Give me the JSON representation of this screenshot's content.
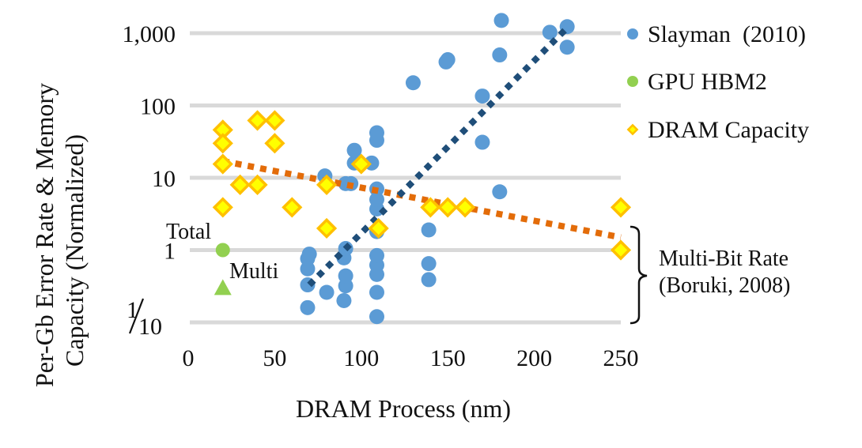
{
  "chart_data": {
    "type": "scatter",
    "title": "",
    "xlabel": "DRAM Process (nm)",
    "ylabel_line1": "Per-Gb Error Rate & Memory",
    "ylabel_line2": "Capacity (Normalized)",
    "xlim": [
      0,
      250
    ],
    "ylim": [
      0.1,
      1000
    ],
    "yscale": "log",
    "grid": "horizontal",
    "legend_position": "right",
    "x_ticks": [
      "0",
      "50",
      "100",
      "150",
      "200",
      "250"
    ],
    "x_tick_values": [
      0,
      50,
      100,
      150,
      200,
      250
    ],
    "y_ticks": [
      "1,000",
      "100",
      "10",
      "1"
    ],
    "y_tick_values": [
      1000,
      100,
      10,
      1
    ],
    "y_tick_fraction": {
      "value": 0.1,
      "numerator": "1",
      "denominator": "10"
    },
    "series": [
      {
        "name": "Slayman  (2010)",
        "marker": "circle",
        "color": "#5b9bd5",
        "points": [
          [
            69,
            0.16
          ],
          [
            69,
            0.33
          ],
          [
            69,
            0.55
          ],
          [
            69,
            0.76
          ],
          [
            70,
            0.88
          ],
          [
            79,
            10.6
          ],
          [
            80,
            0.26
          ],
          [
            90,
            0.2
          ],
          [
            91,
            0.32
          ],
          [
            91,
            0.44
          ],
          [
            90,
            0.78
          ],
          [
            91,
            1.05
          ],
          [
            91,
            8.3
          ],
          [
            94,
            8.3
          ],
          [
            96,
            16
          ],
          [
            96,
            24
          ],
          [
            106,
            16
          ],
          [
            109,
            0.12
          ],
          [
            109,
            0.26
          ],
          [
            109,
            0.46
          ],
          [
            109,
            0.62
          ],
          [
            109,
            0.84
          ],
          [
            109,
            1.8
          ],
          [
            109,
            3.7
          ],
          [
            109,
            5
          ],
          [
            109,
            7
          ],
          [
            109,
            33
          ],
          [
            109,
            42
          ],
          [
            130,
            206
          ],
          [
            139,
            0.39
          ],
          [
            139,
            0.65
          ],
          [
            139,
            1.9
          ],
          [
            149,
            400
          ],
          [
            150,
            430
          ],
          [
            170,
            31
          ],
          [
            170,
            135
          ],
          [
            180,
            6.4
          ],
          [
            180,
            500
          ],
          [
            181,
            1500
          ],
          [
            209,
            1030
          ],
          [
            219,
            1230
          ],
          [
            219,
            640
          ]
        ],
        "trendline": {
          "type": "exponential",
          "color": "#1f4e79",
          "from": [
            70,
            0.33
          ],
          "to": [
            220,
            1250
          ]
        }
      },
      {
        "name": "GPU HBM2",
        "marker": "circle",
        "color": "#92d050",
        "points": [
          [
            20,
            1.0
          ]
        ],
        "extra_points": [
          {
            "label": "Multi",
            "marker": "triangle",
            "x": 20,
            "y": 0.3
          }
        ],
        "point_labels": [
          "Total",
          "Multi"
        ]
      },
      {
        "name": "DRAM Capacity",
        "marker": "diamond",
        "color": "#ffff00",
        "edge_color": "#ffc000",
        "points": [
          [
            20,
            46
          ],
          [
            20,
            30
          ],
          [
            20,
            15.5
          ],
          [
            20,
            3.9
          ],
          [
            30,
            8
          ],
          [
            40,
            8
          ],
          [
            40,
            62
          ],
          [
            50,
            62
          ],
          [
            50,
            30
          ],
          [
            60,
            3.9
          ],
          [
            80,
            2
          ],
          [
            80,
            8
          ],
          [
            100,
            15.5
          ],
          [
            110,
            2
          ],
          [
            140,
            3.9
          ],
          [
            150,
            3.9
          ],
          [
            160,
            3.9
          ],
          [
            250,
            3.9
          ],
          [
            250,
            1.0
          ]
        ],
        "trendline": {
          "type": "exponential",
          "color": "#e36c09",
          "from": [
            20,
            17
          ],
          "to": [
            250,
            1.5
          ]
        }
      }
    ],
    "annotations": [
      {
        "text": "Total",
        "x": 20,
        "y": 1.0
      },
      {
        "text": "Multi",
        "x": 20,
        "y": 0.3
      },
      {
        "text_line1": "Multi-Bit Rate",
        "text_line2": "(Boruki, 2008)",
        "bracket_from": 1.5,
        "bracket_to": 0.1
      }
    ]
  }
}
